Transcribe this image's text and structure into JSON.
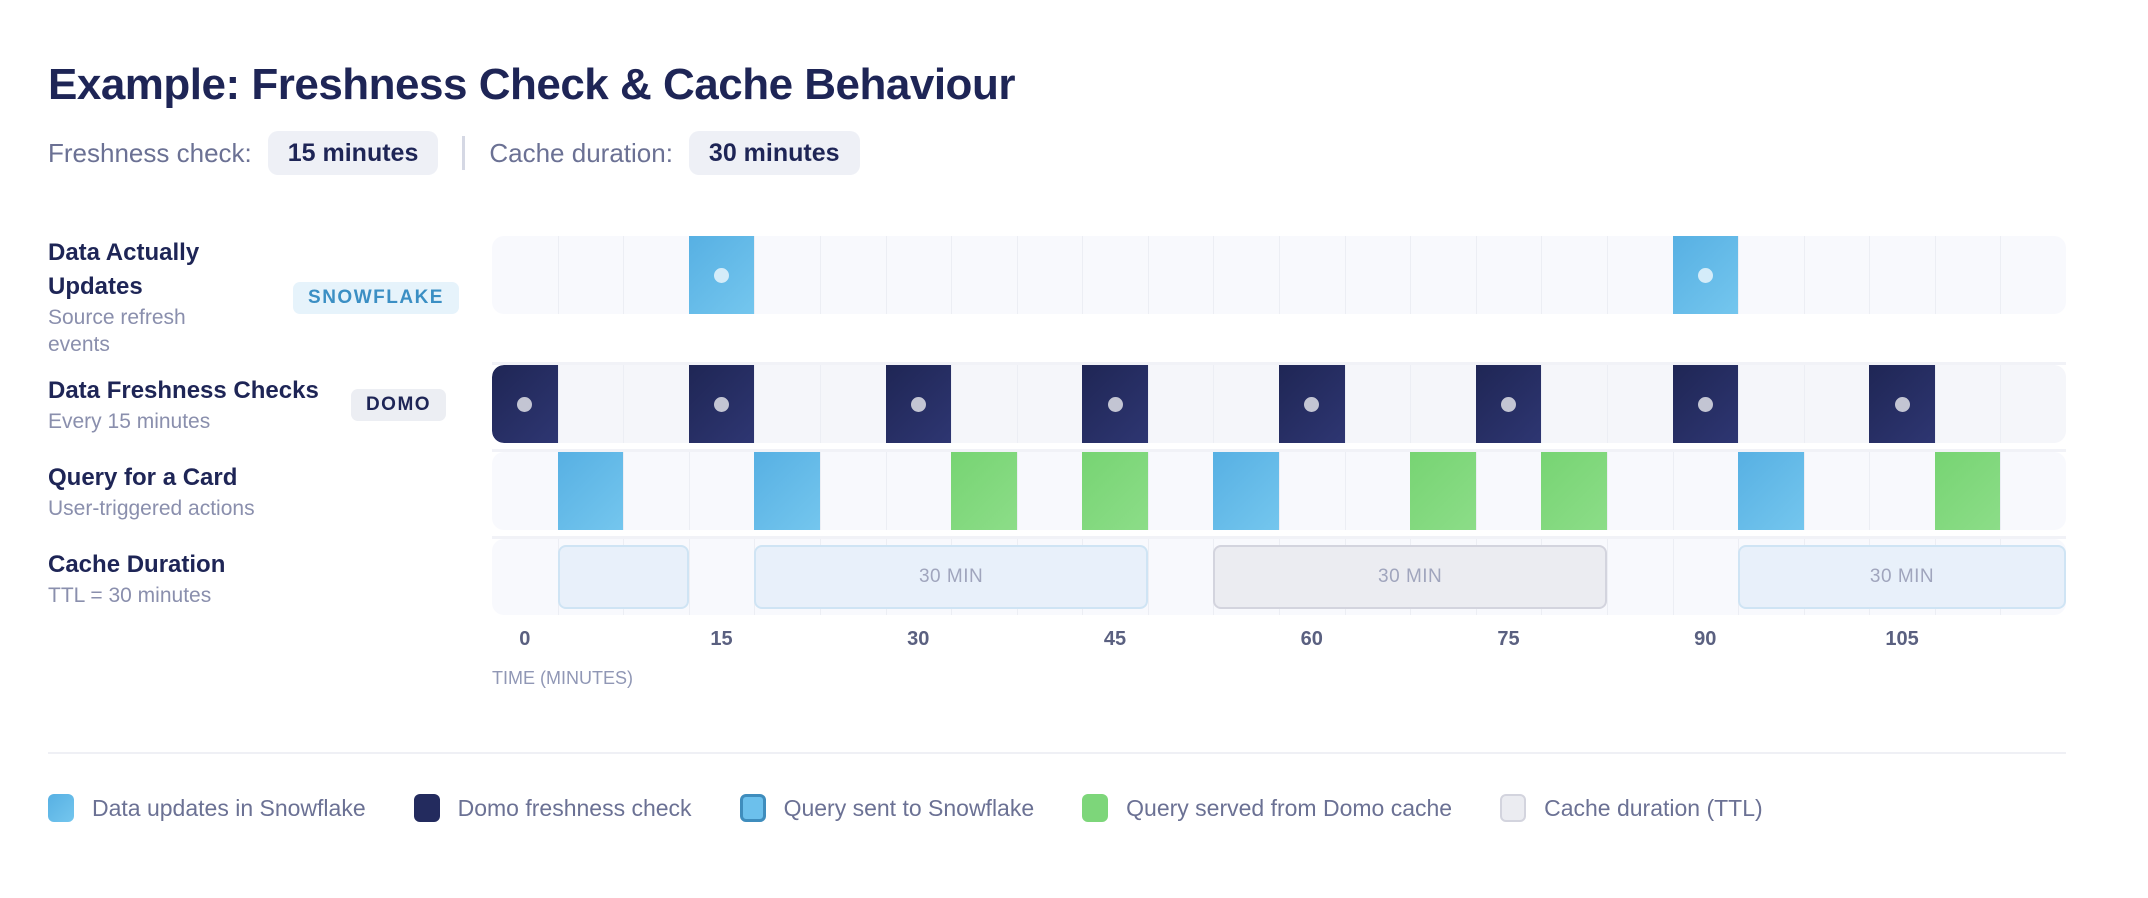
{
  "title": "Example: Freshness Check & Cache Behaviour",
  "settings": {
    "freshness_label": "Freshness check:",
    "freshness_value": "15 minutes",
    "cache_label": "Cache duration:",
    "cache_value": "30 minutes"
  },
  "rows": [
    {
      "title": "Data Actually Updates",
      "subtitle": "Source refresh events",
      "badge": "SNOWFLAKE"
    },
    {
      "title": "Data Freshness Checks",
      "subtitle": "Every 15 minutes",
      "badge": "DOMO"
    },
    {
      "title": "Query for a Card",
      "subtitle": "User-triggered actions"
    },
    {
      "title": "Cache Duration",
      "subtitle": "TTL = 30 minutes"
    }
  ],
  "colors": {
    "snowflake": "#5ab4e5",
    "domo": "#232b5e",
    "cache_hit": "#7dd67a",
    "cache_box": "#e8f0fa",
    "cache_box_expired": "#ebecf1",
    "text": "#1e2556"
  },
  "chart_data": {
    "type": "timeline",
    "xlabel": "TIME (MINUTES)",
    "slot_minutes": 5,
    "xlim": [
      0,
      120
    ],
    "ticks": [
      "0",
      "15",
      "30",
      "45",
      "60",
      "75",
      "90",
      "105"
    ],
    "snowflake_updates": [
      15,
      90
    ],
    "freshness_checks": [
      0,
      15,
      30,
      45,
      60,
      75,
      90,
      105
    ],
    "queries": [
      {
        "t": 5,
        "type": "snowflake"
      },
      {
        "t": 20,
        "type": "snowflake"
      },
      {
        "t": 35,
        "type": "cache"
      },
      {
        "t": 45,
        "type": "cache"
      },
      {
        "t": 55,
        "type": "snowflake"
      },
      {
        "t": 70,
        "type": "cache"
      },
      {
        "t": 80,
        "type": "cache"
      },
      {
        "t": 95,
        "type": "snowflake"
      },
      {
        "t": 110,
        "type": "cache"
      }
    ],
    "cache_windows": [
      {
        "start": 5,
        "end": 15,
        "label": "",
        "state": "active"
      },
      {
        "start": 20,
        "end": 50,
        "label": "30 MIN",
        "state": "active"
      },
      {
        "start": 55,
        "end": 85,
        "label": "30 MIN",
        "state": "expired"
      },
      {
        "start": 95,
        "end": 120,
        "label": "30 MIN",
        "state": "active"
      }
    ],
    "legend": [
      {
        "label": "Data updates in Snowflake",
        "key": "snowflake"
      },
      {
        "label": "Domo freshness check",
        "key": "domo"
      },
      {
        "label": "Query sent to Snowflake",
        "key": "query_snowflake"
      },
      {
        "label": "Query served from Domo cache",
        "key": "cache_hit"
      },
      {
        "label": "Cache duration (TTL)",
        "key": "ttl"
      }
    ]
  }
}
